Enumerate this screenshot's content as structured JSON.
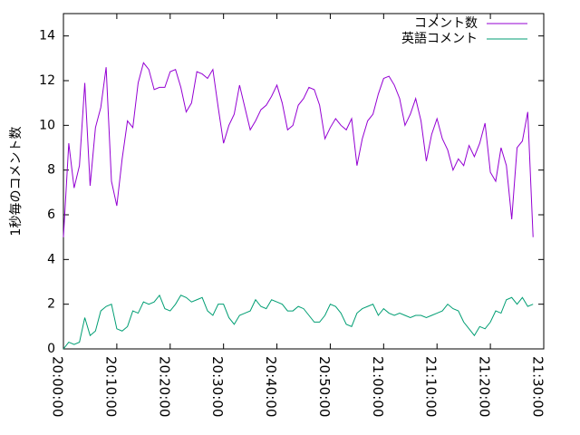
{
  "chart_data": {
    "type": "line",
    "y_label": "1秒毎のコメント数",
    "x": [
      "20:00:00",
      "20:01:00",
      "20:02:00",
      "20:03:00",
      "20:04:00",
      "20:05:00",
      "20:06:00",
      "20:07:00",
      "20:08:00",
      "20:09:00",
      "20:10:00",
      "20:11:00",
      "20:12:00",
      "20:13:00",
      "20:14:00",
      "20:15:00",
      "20:16:00",
      "20:17:00",
      "20:18:00",
      "20:19:00",
      "20:20:00",
      "20:21:00",
      "20:22:00",
      "20:23:00",
      "20:24:00",
      "20:25:00",
      "20:26:00",
      "20:27:00",
      "20:28:00",
      "20:29:00",
      "20:30:00",
      "20:31:00",
      "20:32:00",
      "20:33:00",
      "20:34:00",
      "20:35:00",
      "20:36:00",
      "20:37:00",
      "20:38:00",
      "20:39:00",
      "20:40:00",
      "20:41:00",
      "20:42:00",
      "20:43:00",
      "20:44:00",
      "20:45:00",
      "20:46:00",
      "20:47:00",
      "20:48:00",
      "20:49:00",
      "20:50:00",
      "20:51:00",
      "20:52:00",
      "20:53:00",
      "20:54:00",
      "20:55:00",
      "20:56:00",
      "20:57:00",
      "20:58:00",
      "20:59:00",
      "21:00:00",
      "21:01:00",
      "21:02:00",
      "21:03:00",
      "21:04:00",
      "21:05:00",
      "21:06:00",
      "21:07:00",
      "21:08:00",
      "21:09:00",
      "21:10:00",
      "21:11:00",
      "21:12:00",
      "21:13:00",
      "21:14:00",
      "21:15:00",
      "21:16:00",
      "21:17:00",
      "21:18:00",
      "21:19:00",
      "21:20:00",
      "21:21:00",
      "21:22:00",
      "21:23:00",
      "21:24:00",
      "21:25:00",
      "21:26:00",
      "21:27:00",
      "21:28:00"
    ],
    "series": [
      {
        "name": "コメント数",
        "color": "#9400d3",
        "values": [
          5.0,
          9.2,
          7.2,
          8.2,
          11.9,
          7.3,
          9.9,
          10.8,
          12.6,
          7.5,
          6.4,
          8.5,
          10.2,
          9.9,
          11.9,
          12.8,
          12.5,
          11.6,
          11.7,
          11.7,
          12.4,
          12.5,
          11.7,
          10.6,
          11.0,
          12.4,
          12.3,
          12.1,
          12.5,
          10.8,
          9.2,
          10.0,
          10.5,
          11.8,
          10.8,
          9.8,
          10.2,
          10.7,
          10.9,
          11.3,
          11.8,
          11.0,
          9.8,
          10.0,
          10.9,
          11.2,
          11.7,
          11.6,
          10.9,
          9.4,
          9.9,
          10.3,
          10.0,
          9.8,
          10.3,
          8.2,
          9.4,
          10.2,
          10.5,
          11.4,
          12.1,
          12.2,
          11.8,
          11.2,
          10.0,
          10.5,
          11.2,
          10.2,
          8.4,
          9.6,
          10.3,
          9.4,
          8.9,
          8.0,
          8.5,
          8.2,
          9.1,
          8.6,
          9.2,
          10.1,
          7.9,
          7.5,
          9.0,
          8.2,
          5.8,
          9.0,
          9.3,
          10.6,
          5.0
        ]
      },
      {
        "name": "英語コメント",
        "color": "#009e73",
        "values": [
          0.0,
          0.3,
          0.2,
          0.3,
          1.4,
          0.6,
          0.8,
          1.7,
          1.9,
          2.0,
          0.9,
          0.8,
          1.0,
          1.7,
          1.6,
          2.1,
          2.0,
          2.1,
          2.4,
          1.8,
          1.7,
          2.0,
          2.4,
          2.3,
          2.1,
          2.2,
          2.3,
          1.7,
          1.5,
          2.0,
          2.0,
          1.4,
          1.1,
          1.5,
          1.6,
          1.7,
          2.2,
          1.9,
          1.8,
          2.2,
          2.1,
          2.0,
          1.7,
          1.7,
          1.9,
          1.8,
          1.5,
          1.2,
          1.2,
          1.5,
          2.0,
          1.9,
          1.6,
          1.1,
          1.0,
          1.6,
          1.8,
          1.9,
          2.0,
          1.5,
          1.8,
          1.6,
          1.5,
          1.6,
          1.5,
          1.4,
          1.5,
          1.5,
          1.4,
          1.5,
          1.6,
          1.7,
          2.0,
          1.8,
          1.7,
          1.2,
          0.9,
          0.6,
          1.0,
          0.9,
          1.2,
          1.7,
          1.6,
          2.2,
          2.3,
          2.0,
          2.3,
          1.9,
          2.0
        ]
      }
    ],
    "xlim": [
      "20:00:00",
      "21:30:00"
    ],
    "xticks": [
      "20:00:00",
      "20:10:00",
      "20:20:00",
      "20:30:00",
      "20:40:00",
      "20:50:00",
      "21:00:00",
      "21:10:00",
      "21:20:00",
      "21:30:00"
    ],
    "ylim": [
      0,
      15
    ],
    "yticks": [
      0,
      2,
      4,
      6,
      8,
      10,
      12,
      14
    ],
    "legend": "top-right"
  }
}
